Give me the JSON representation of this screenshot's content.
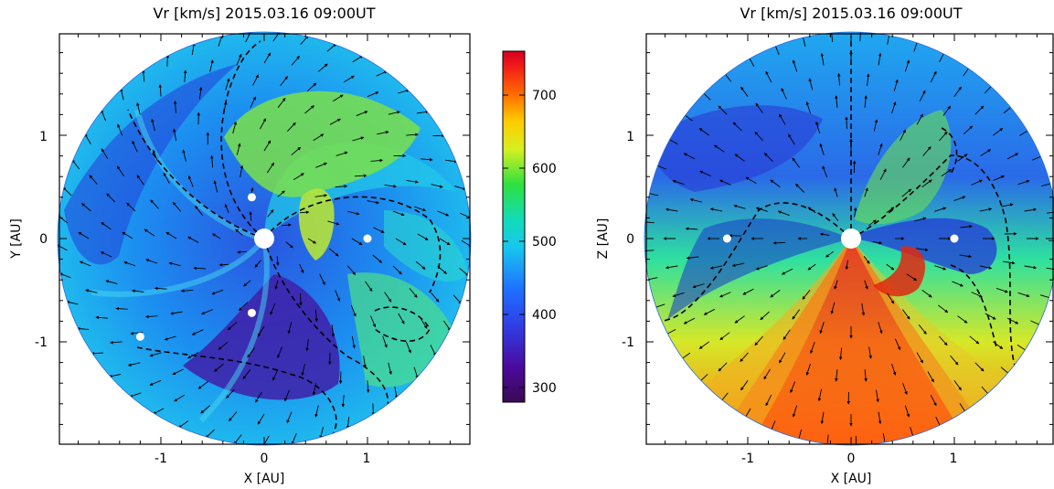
{
  "chart_data": [
    {
      "type": "heatmap",
      "title": "Vr  [km/s]   2015.03.16 09:00UT",
      "xlabel": "X  [AU]",
      "ylabel": "Y  [AU]",
      "xlim": [
        -2,
        2
      ],
      "ylim": [
        -2,
        2
      ],
      "x_ticks": [
        "-1",
        "0",
        "1"
      ],
      "y_ticks": [
        "1",
        "0",
        "-1"
      ],
      "planets": [
        {
          "x": 1.0,
          "y": 0.0
        },
        {
          "x": -0.12,
          "y": -0.72
        },
        {
          "x": -1.2,
          "y": -0.95
        },
        {
          "x": -0.12,
          "y": 0.4
        }
      ]
    },
    {
      "type": "heatmap",
      "title": "Vr  [km/s]   2015.03.16 09:00UT",
      "xlabel": "X  [AU]",
      "ylabel": "Z  [AU]",
      "xlim": [
        -2,
        2
      ],
      "ylim": [
        -2,
        2
      ],
      "x_ticks": [
        "-1",
        "0",
        "1"
      ],
      "y_ticks": [
        "1",
        "0",
        "-1"
      ],
      "planets": [
        {
          "x": 1.0,
          "y": 0.0
        },
        {
          "x": -1.2,
          "y": 0.0
        }
      ]
    }
  ],
  "colorbar": {
    "min": 280,
    "max": 760,
    "ticks": [
      "300",
      "400",
      "500",
      "600",
      "700"
    ],
    "tick_values": [
      300,
      400,
      500,
      600,
      700
    ]
  }
}
